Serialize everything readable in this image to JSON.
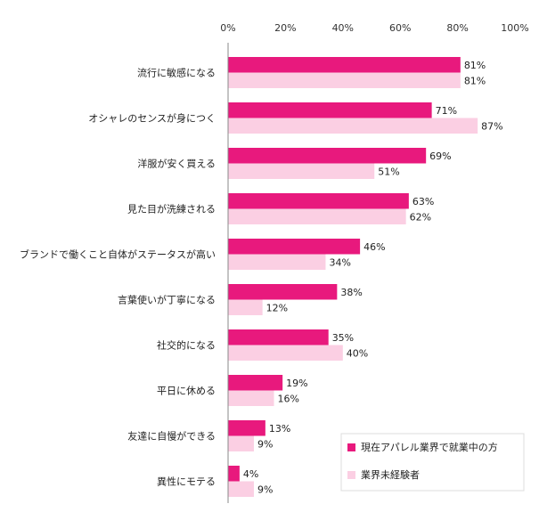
{
  "chart_data": {
    "type": "bar",
    "orientation": "horizontal",
    "title": "",
    "xlabel": "",
    "ylabel": "",
    "xlim": [
      0,
      100
    ],
    "x_ticks": [
      "0%",
      "20%",
      "40%",
      "60%",
      "80%",
      "100%"
    ],
    "grid": false,
    "legend_position": "bottom-right",
    "value_suffix": "%",
    "categories": [
      "流行に敏感になる",
      "オシャレのセンスが身につく",
      "洋服が安く買える",
      "見た目が洗練される",
      "ブランドで働くこと自体がステータスが高い",
      "言葉使いが丁寧になる",
      "社交的になる",
      "平日に休める",
      "友達に自慢ができる",
      "異性にモテる"
    ],
    "series": [
      {
        "name": "現在アパレル業界で就業中の方",
        "color": "#e8197d",
        "values": [
          81,
          71,
          69,
          63,
          46,
          38,
          35,
          19,
          13,
          4
        ]
      },
      {
        "name": "業界未経験者",
        "color": "#fbcfe3",
        "values": [
          81,
          87,
          51,
          62,
          34,
          12,
          40,
          16,
          9,
          9
        ]
      }
    ]
  }
}
